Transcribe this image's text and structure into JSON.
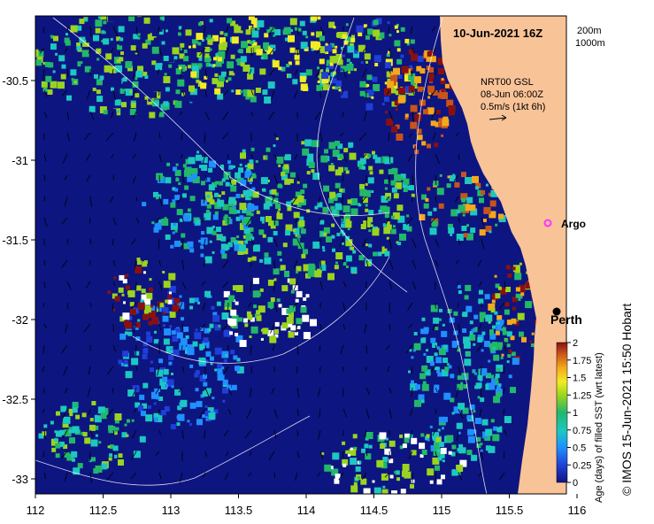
{
  "map": {
    "title": "10-Jun-2021 16Z",
    "model_line1": "NRT00 GSL",
    "model_line2": "08-Jun 06:00Z",
    "model_line3": "0.5m/s (1kt 6h)",
    "depth_legend": [
      "200m",
      "1000m"
    ],
    "argo_label": "Argo",
    "city_label": "Perth",
    "credit": "© IMOS 15-Jun-2021 15:50 Hobart",
    "lon_ticks": [
      "112",
      "112.5",
      "113",
      "113.5",
      "114",
      "114.5",
      "115",
      "115.5",
      "116"
    ],
    "lat_ticks": [
      "-30.5",
      "-31",
      "-31.5",
      "-32",
      "-32.5",
      "-33"
    ],
    "colorbar": {
      "label": "Age (days) of filled SST (wrt latest)",
      "ticks": [
        "0",
        "0.25",
        "0.5",
        "0.75",
        "1",
        "1.25",
        "1.5",
        "1.75",
        "2"
      ]
    },
    "colors": {
      "land": "#f9c398",
      "ocean_base": "#0d1580",
      "argo": "#ff33ff"
    }
  }
}
